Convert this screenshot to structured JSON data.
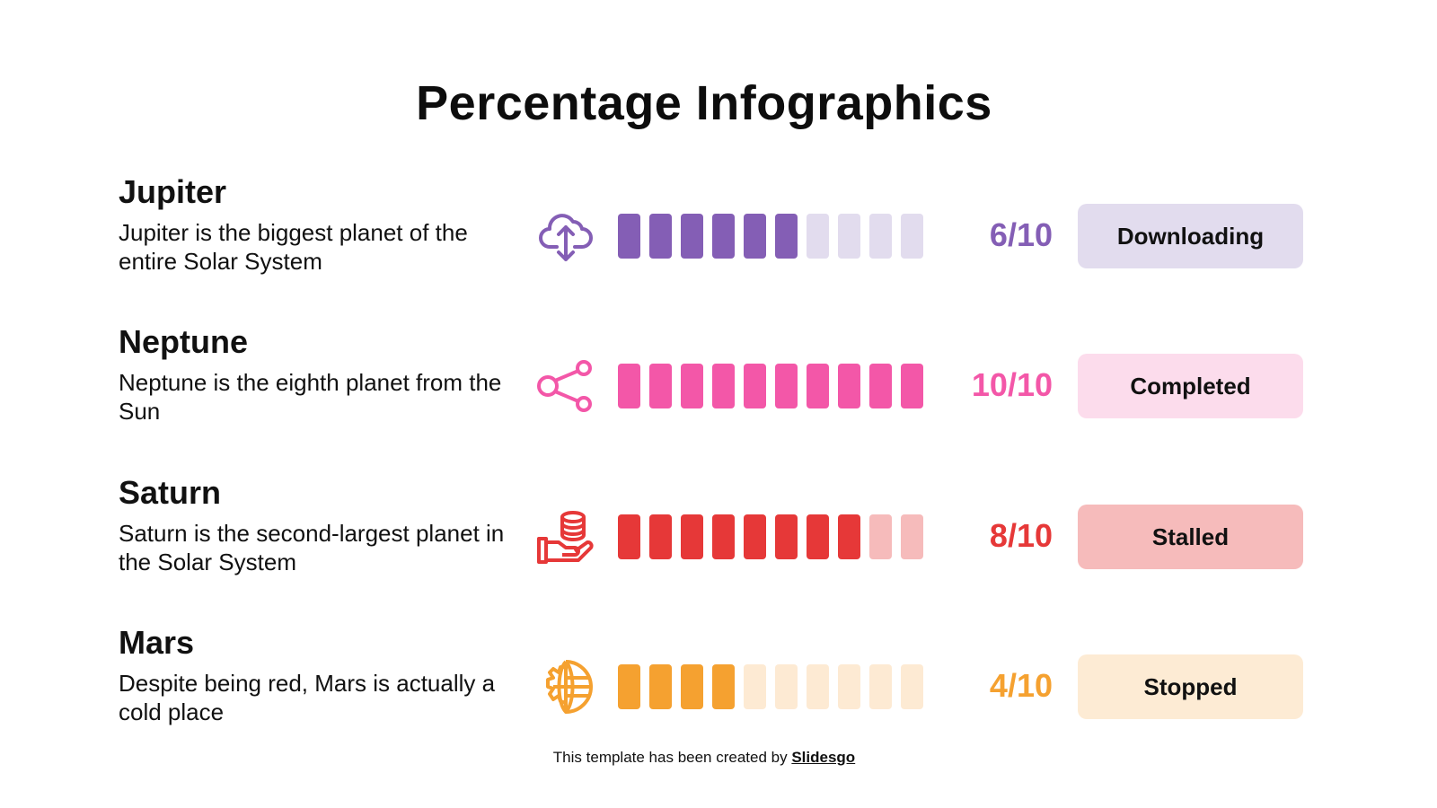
{
  "title": "Percentage Infographics",
  "rows": [
    {
      "name": "Jupiter",
      "description": "Jupiter is the biggest planet of the entire Solar System",
      "icon": "cloud-upload-download-icon",
      "value": 6,
      "total": 10,
      "score": "6/10",
      "status": "Downloading",
      "color": "#845EB5",
      "color_light": "#E2DCEE",
      "badge_bg": "#E2DCEE"
    },
    {
      "name": "Neptune",
      "description": "Neptune is the eighth planet from the Sun",
      "icon": "share-icon",
      "value": 10,
      "total": 10,
      "score": "10/10",
      "status": "Completed",
      "color": "#F357A8",
      "color_light": "#FCD9EA",
      "badge_bg": "#FCDCEC"
    },
    {
      "name": "Saturn",
      "description": "Saturn is the second-largest planet in the Solar System",
      "icon": "hand-coins-icon",
      "value": 8,
      "total": 10,
      "score": "8/10",
      "status": "Stalled",
      "color": "#E63838",
      "color_light": "#F6BBBB",
      "badge_bg": "#F6BBBB"
    },
    {
      "name": "Mars",
      "description": "Despite being red, Mars is actually a cold place",
      "icon": "gear-globe-icon",
      "value": 4,
      "total": 10,
      "score": "4/10",
      "status": "Stopped",
      "color": "#F5A130",
      "color_light": "#FDEAD3",
      "badge_bg": "#FDEBD4"
    }
  ],
  "footer": {
    "text": "This template has been created by ",
    "brand": "Slidesgo"
  },
  "chart_data": {
    "type": "bar",
    "title": "Percentage Infographics",
    "categories": [
      "Jupiter",
      "Neptune",
      "Saturn",
      "Mars"
    ],
    "values": [
      6,
      10,
      8,
      4
    ],
    "max": 10,
    "labels": [
      "6/10",
      "10/10",
      "8/10",
      "4/10"
    ],
    "status": [
      "Downloading",
      "Completed",
      "Stalled",
      "Stopped"
    ],
    "xlabel": "",
    "ylabel": "",
    "ylim": [
      0,
      10
    ]
  }
}
